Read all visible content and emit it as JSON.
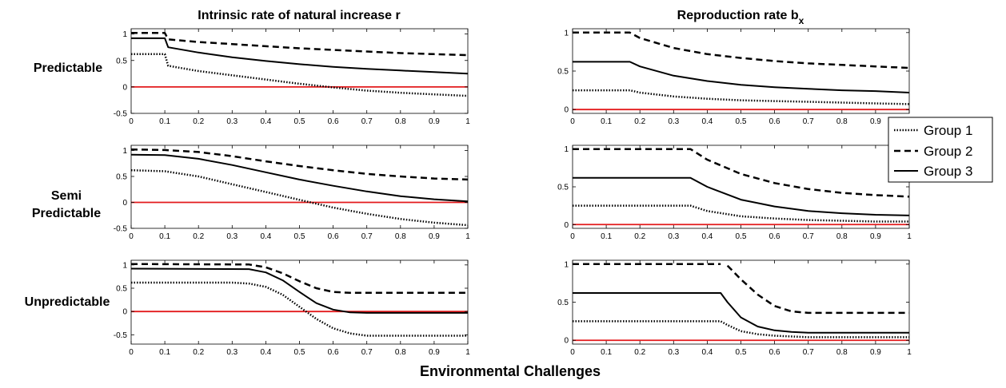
{
  "figure": {
    "xlabel": "Environmental Challenges",
    "column_titles": {
      "left": "Intrinsic rate of natural increase r",
      "right_main": "Reproduction rate b",
      "right_sub": "x"
    },
    "row_labels": {
      "predictable": "Predictable",
      "semi_line1": "Semi",
      "semi_line2": "Predictable",
      "unpredictable": "Unpredictable"
    },
    "legend": {
      "placement": "right-middle",
      "entries": [
        "Group 1",
        "Group 2",
        "Group 3"
      ]
    },
    "colors": {
      "series": "#000000",
      "zero_line": "#e31a1c",
      "axes": "#000000"
    }
  },
  "chart_data": [
    {
      "type": "line",
      "row": "Predictable",
      "column": "r",
      "xlim": [
        0,
        1
      ],
      "ylim": [
        -0.5,
        1.1
      ],
      "xticks": [
        "0",
        "0.1",
        "0.2",
        "0.3",
        "0.4",
        "0.5",
        "0.6",
        "0.7",
        "0.8",
        "0.9",
        "1"
      ],
      "yticks": [
        {
          "v": -0.5,
          "label": "-0.5"
        },
        {
          "v": 0,
          "label": "0"
        },
        {
          "v": 0.5,
          "label": "0.5"
        },
        {
          "v": 1,
          "label": "1"
        }
      ],
      "reference_line": 0,
      "series": [
        {
          "name": "Group 1",
          "style": "dotted",
          "x": [
            0,
            0.1,
            0.11,
            0.2,
            0.3,
            0.4,
            0.5,
            0.6,
            0.7,
            0.8,
            0.9,
            1.0
          ],
          "y": [
            0.62,
            0.62,
            0.4,
            0.3,
            0.22,
            0.14,
            0.06,
            -0.01,
            -0.07,
            -0.11,
            -0.14,
            -0.17
          ]
        },
        {
          "name": "Group 2",
          "style": "dashed",
          "x": [
            0,
            0.1,
            0.11,
            0.2,
            0.3,
            0.4,
            0.5,
            0.6,
            0.7,
            0.8,
            0.9,
            1.0
          ],
          "y": [
            1.02,
            1.02,
            0.9,
            0.85,
            0.81,
            0.77,
            0.73,
            0.7,
            0.67,
            0.64,
            0.62,
            0.6
          ]
        },
        {
          "name": "Group 3",
          "style": "solid",
          "x": [
            0,
            0.1,
            0.11,
            0.2,
            0.3,
            0.4,
            0.5,
            0.6,
            0.7,
            0.8,
            0.9,
            1.0
          ],
          "y": [
            0.92,
            0.92,
            0.75,
            0.65,
            0.56,
            0.49,
            0.43,
            0.38,
            0.34,
            0.31,
            0.28,
            0.25
          ]
        }
      ]
    },
    {
      "type": "line",
      "row": "Predictable",
      "column": "b_x",
      "xlim": [
        0,
        1
      ],
      "ylim": [
        -0.05,
        1.05
      ],
      "xticks": [
        "0",
        "0.1",
        "0.2",
        "0.3",
        "0.4",
        "0.5",
        "0.6",
        "0.7",
        "0.8",
        "0.9",
        "1"
      ],
      "yticks": [
        {
          "v": 0,
          "label": "0"
        },
        {
          "v": 0.5,
          "label": "0.5"
        },
        {
          "v": 1,
          "label": "1"
        }
      ],
      "reference_line": 0,
      "series": [
        {
          "name": "Group 1",
          "style": "dotted",
          "x": [
            0,
            0.17,
            0.2,
            0.3,
            0.4,
            0.5,
            0.6,
            0.7,
            0.8,
            0.9,
            1.0
          ],
          "y": [
            0.25,
            0.25,
            0.22,
            0.17,
            0.14,
            0.12,
            0.11,
            0.1,
            0.09,
            0.08,
            0.07
          ]
        },
        {
          "name": "Group 2",
          "style": "dashed",
          "x": [
            0,
            0.17,
            0.2,
            0.3,
            0.4,
            0.5,
            0.6,
            0.7,
            0.8,
            0.9,
            1.0
          ],
          "y": [
            1.0,
            1.0,
            0.93,
            0.8,
            0.72,
            0.67,
            0.63,
            0.6,
            0.58,
            0.56,
            0.54
          ]
        },
        {
          "name": "Group 3",
          "style": "solid",
          "x": [
            0,
            0.17,
            0.2,
            0.3,
            0.4,
            0.5,
            0.6,
            0.7,
            0.8,
            0.9,
            1.0
          ],
          "y": [
            0.62,
            0.62,
            0.56,
            0.44,
            0.37,
            0.32,
            0.29,
            0.27,
            0.25,
            0.24,
            0.22
          ]
        }
      ]
    },
    {
      "type": "line",
      "row": "Semi Predictable",
      "column": "r",
      "xlim": [
        0,
        1
      ],
      "ylim": [
        -0.5,
        1.1
      ],
      "xticks": [
        "0",
        "0.1",
        "0.2",
        "0.3",
        "0.4",
        "0.5",
        "0.6",
        "0.7",
        "0.8",
        "0.9",
        "1"
      ],
      "yticks": [
        {
          "v": -0.5,
          "label": "-0.5"
        },
        {
          "v": 0,
          "label": "0"
        },
        {
          "v": 0.5,
          "label": "0.5"
        },
        {
          "v": 1,
          "label": "1"
        }
      ],
      "reference_line": 0,
      "series": [
        {
          "name": "Group 1",
          "style": "dotted",
          "x": [
            0,
            0.1,
            0.2,
            0.3,
            0.4,
            0.5,
            0.6,
            0.7,
            0.8,
            0.9,
            1.0
          ],
          "y": [
            0.62,
            0.6,
            0.5,
            0.35,
            0.2,
            0.05,
            -0.1,
            -0.22,
            -0.32,
            -0.39,
            -0.44
          ]
        },
        {
          "name": "Group 2",
          "style": "dashed",
          "x": [
            0,
            0.1,
            0.2,
            0.3,
            0.4,
            0.5,
            0.6,
            0.7,
            0.8,
            0.9,
            1.0
          ],
          "y": [
            1.02,
            1.01,
            0.97,
            0.89,
            0.79,
            0.7,
            0.62,
            0.55,
            0.5,
            0.46,
            0.44
          ]
        },
        {
          "name": "Group 3",
          "style": "solid",
          "x": [
            0,
            0.1,
            0.2,
            0.3,
            0.4,
            0.5,
            0.6,
            0.7,
            0.8,
            0.9,
            1.0
          ],
          "y": [
            0.92,
            0.91,
            0.84,
            0.72,
            0.58,
            0.44,
            0.32,
            0.21,
            0.12,
            0.06,
            0.02
          ]
        }
      ]
    },
    {
      "type": "line",
      "row": "Semi Predictable",
      "column": "b_x",
      "xlim": [
        0,
        1
      ],
      "ylim": [
        -0.05,
        1.05
      ],
      "xticks": [
        "0",
        "0.1",
        "0.2",
        "0.3",
        "0.4",
        "0.5",
        "0.6",
        "0.7",
        "0.8",
        "0.9",
        "1"
      ],
      "yticks": [
        {
          "v": 0,
          "label": "0"
        },
        {
          "v": 0.5,
          "label": "0.5"
        },
        {
          "v": 1,
          "label": "1"
        }
      ],
      "reference_line": 0,
      "series": [
        {
          "name": "Group 1",
          "style": "dotted",
          "x": [
            0,
            0.35,
            0.4,
            0.5,
            0.6,
            0.7,
            0.8,
            0.9,
            1.0
          ],
          "y": [
            0.25,
            0.25,
            0.18,
            0.11,
            0.08,
            0.06,
            0.05,
            0.04,
            0.04
          ]
        },
        {
          "name": "Group 2",
          "style": "dashed",
          "x": [
            0,
            0.35,
            0.4,
            0.5,
            0.6,
            0.7,
            0.8,
            0.9,
            1.0
          ],
          "y": [
            1.0,
            1.0,
            0.86,
            0.67,
            0.55,
            0.47,
            0.42,
            0.39,
            0.37
          ]
        },
        {
          "name": "Group 3",
          "style": "solid",
          "x": [
            0,
            0.35,
            0.4,
            0.5,
            0.6,
            0.7,
            0.8,
            0.9,
            1.0
          ],
          "y": [
            0.62,
            0.62,
            0.5,
            0.33,
            0.24,
            0.18,
            0.15,
            0.13,
            0.12
          ]
        }
      ]
    },
    {
      "type": "line",
      "row": "Unpredictable",
      "column": "r",
      "xlim": [
        0,
        1
      ],
      "ylim": [
        -0.7,
        1.1
      ],
      "xticks": [
        "0",
        "0.1",
        "0.2",
        "0.3",
        "0.4",
        "0.5",
        "0.6",
        "0.7",
        "0.8",
        "0.9",
        "1"
      ],
      "yticks": [
        {
          "v": -0.5,
          "label": "-0.5"
        },
        {
          "v": 0,
          "label": "0"
        },
        {
          "v": 0.5,
          "label": "0.5"
        },
        {
          "v": 1,
          "label": "1"
        }
      ],
      "reference_line": 0,
      "series": [
        {
          "name": "Group 1",
          "style": "dotted",
          "x": [
            0,
            0.3,
            0.35,
            0.4,
            0.45,
            0.5,
            0.55,
            0.6,
            0.65,
            0.7,
            0.8,
            0.9,
            1.0
          ],
          "y": [
            0.62,
            0.62,
            0.6,
            0.53,
            0.36,
            0.1,
            -0.16,
            -0.36,
            -0.47,
            -0.52,
            -0.52,
            -0.52,
            -0.52
          ]
        },
        {
          "name": "Group 2",
          "style": "dashed",
          "x": [
            0,
            0.35,
            0.4,
            0.45,
            0.5,
            0.55,
            0.6,
            0.65,
            0.7,
            0.8,
            0.9,
            1.0
          ],
          "y": [
            1.02,
            1.01,
            0.95,
            0.82,
            0.65,
            0.5,
            0.42,
            0.4,
            0.4,
            0.4,
            0.4,
            0.4
          ]
        },
        {
          "name": "Group 3",
          "style": "solid",
          "x": [
            0,
            0.35,
            0.4,
            0.45,
            0.5,
            0.55,
            0.6,
            0.65,
            0.7,
            0.8,
            0.9,
            1.0
          ],
          "y": [
            0.92,
            0.91,
            0.84,
            0.67,
            0.42,
            0.18,
            0.04,
            -0.02,
            -0.03,
            -0.03,
            -0.03,
            -0.03
          ]
        }
      ]
    },
    {
      "type": "line",
      "row": "Unpredictable",
      "column": "b_x",
      "xlim": [
        0,
        1
      ],
      "ylim": [
        -0.05,
        1.05
      ],
      "xticks": [
        "0",
        "0.1",
        "0.2",
        "0.3",
        "0.4",
        "0.5",
        "0.6",
        "0.7",
        "0.8",
        "0.9",
        "1"
      ],
      "yticks": [
        {
          "v": 0,
          "label": "0"
        },
        {
          "v": 0.5,
          "label": "0.5"
        },
        {
          "v": 1,
          "label": "1"
        }
      ],
      "reference_line": 0,
      "series": [
        {
          "name": "Group 1",
          "style": "dotted",
          "x": [
            0,
            0.44,
            0.46,
            0.5,
            0.55,
            0.6,
            0.7,
            0.8,
            0.9,
            1.0
          ],
          "y": [
            0.25,
            0.25,
            0.2,
            0.12,
            0.08,
            0.06,
            0.04,
            0.04,
            0.04,
            0.04
          ]
        },
        {
          "name": "Group 2",
          "style": "dashed",
          "x": [
            0,
            0.44,
            0.45,
            0.46,
            0.5,
            0.55,
            0.6,
            0.65,
            0.7,
            0.8,
            0.9,
            1.0
          ],
          "y": [
            1.0,
            1.0,
            null,
            0.98,
            0.8,
            0.6,
            0.45,
            0.38,
            0.36,
            0.36,
            0.36,
            0.36
          ]
        },
        {
          "name": "Group 3",
          "style": "solid",
          "x": [
            0,
            0.44,
            0.46,
            0.5,
            0.55,
            0.6,
            0.65,
            0.7,
            0.8,
            0.9,
            1.0
          ],
          "y": [
            0.62,
            0.62,
            0.5,
            0.3,
            0.18,
            0.13,
            0.11,
            0.1,
            0.1,
            0.1,
            0.1
          ]
        }
      ]
    }
  ]
}
